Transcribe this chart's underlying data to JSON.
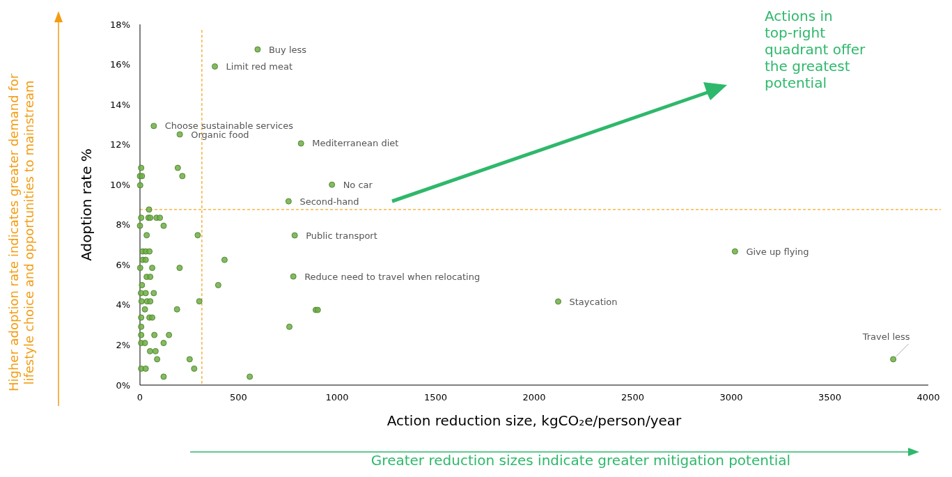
{
  "chart_data": {
    "type": "scatter",
    "xlabel": "Action reduction size, kgCO₂e/person/year",
    "ylabel": "Adoption rate %",
    "xlim": [
      0,
      4000
    ],
    "xticks": [
      0,
      500,
      1000,
      1500,
      2000,
      2500,
      3000,
      3500,
      4000
    ],
    "ylim": [
      0,
      18
    ],
    "yticks": [
      {
        "value": 0,
        "label": "0%"
      },
      {
        "value": 2,
        "label": "2%"
      },
      {
        "value": 4,
        "label": "4%"
      },
      {
        "value": 6,
        "label": "6%"
      },
      {
        "value": 8,
        "label": "8%"
      },
      {
        "value": 10,
        "label": "10%"
      },
      {
        "value": 12,
        "label": "12%"
      },
      {
        "value": 14,
        "label": "14%"
      },
      {
        "value": 16,
        "label": "16%"
      },
      {
        "value": 18,
        "label": "18%"
      }
    ],
    "grid": false,
    "marker": "circle",
    "series": [
      {
        "color": "#70ad47",
        "x": [
          380,
          597,
          70,
          202,
          817,
          974,
          754,
          785,
          778,
          2122,
          3019,
          3822,
          6,
          192,
          0,
          10,
          215,
          1,
          46,
          6,
          43,
          52,
          84,
          101,
          0,
          120,
          34,
          293,
          14,
          29,
          48,
          14,
          29,
          429,
          1,
          62,
          201,
          34,
          52,
          10,
          397,
          5,
          29,
          70,
          8,
          36,
          52,
          301,
          25,
          188,
          892,
          902,
          6,
          48,
          62,
          6,
          758,
          6,
          73,
          147,
          6,
          25,
          120,
          51,
          79,
          87,
          252,
          6,
          29,
          275,
          120,
          557
        ],
        "values": [
          15.9,
          16.75,
          12.93,
          12.51,
          12.06,
          10.0,
          9.17,
          7.47,
          5.42,
          4.17,
          6.67,
          1.29,
          10.84,
          10.84,
          10.43,
          10.43,
          10.43,
          9.97,
          8.76,
          8.35,
          8.35,
          8.35,
          8.35,
          8.35,
          7.95,
          7.95,
          7.48,
          7.48,
          6.67,
          6.67,
          6.67,
          6.25,
          6.25,
          6.25,
          5.85,
          5.85,
          5.85,
          5.4,
          5.4,
          4.99,
          4.99,
          4.59,
          4.59,
          4.59,
          4.18,
          4.18,
          4.18,
          4.18,
          3.78,
          3.78,
          3.75,
          3.75,
          3.37,
          3.37,
          3.37,
          2.91,
          2.91,
          2.5,
          2.5,
          2.5,
          2.1,
          2.1,
          2.1,
          1.69,
          1.69,
          1.29,
          1.29,
          0.82,
          0.82,
          0.82,
          0.42,
          0.42
        ]
      }
    ],
    "ref_lines": [
      {
        "axis": "x",
        "value": 314,
        "color": "#f5a623",
        "line_style": "dashed"
      },
      {
        "axis": "y",
        "value": 8.76,
        "color": "#f5a623",
        "line_style": "dashed"
      }
    ],
    "annotations": [
      {
        "text": "Limit red meat",
        "x": 380,
        "y": 15.9
      },
      {
        "text": "Buy less",
        "x": 597,
        "y": 16.75
      },
      {
        "text": "Choose sustainable services",
        "x": 70,
        "y": 12.93
      },
      {
        "text": "Organic food",
        "x": 202,
        "y": 12.51
      },
      {
        "text": "Mediterranean diet",
        "x": 817,
        "y": 12.06
      },
      {
        "text": "No car",
        "x": 974,
        "y": 10.0
      },
      {
        "text": "Second-hand",
        "x": 754,
        "y": 9.17
      },
      {
        "text": "Public transport",
        "x": 785,
        "y": 7.47
      },
      {
        "text": "Reduce need to travel when relocating",
        "x": 778,
        "y": 5.42
      },
      {
        "text": "Staycation",
        "x": 2122,
        "y": 4.17
      },
      {
        "text": "Give up flying",
        "x": 3019,
        "y": 6.67
      },
      {
        "text": "Travel less",
        "x": 3822,
        "y": 1.29
      },
      "Actions in top-right quadrant offer the greatest potential",
      "Higher adoption rate indicates greater demand for lifestyle choice and opportunities to mainstream",
      "Greater reduction sizes indicate greater mitigation potential"
    ]
  }
}
